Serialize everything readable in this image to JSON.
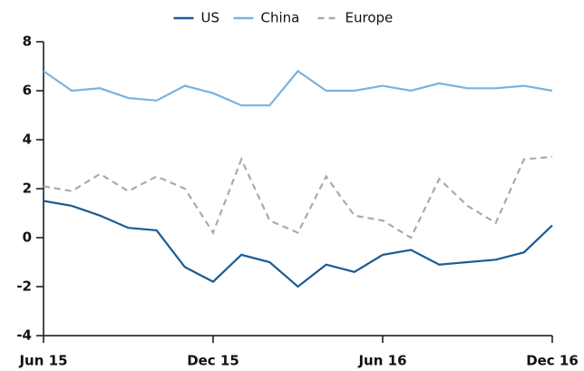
{
  "chart_data": {
    "type": "line",
    "categories": [
      "Jun 15",
      null,
      null,
      null,
      null,
      null,
      "Dec 15",
      null,
      null,
      null,
      null,
      null,
      "Jun 16",
      null,
      null,
      null,
      null,
      null,
      "Dec 16"
    ],
    "series": [
      {
        "name": "US",
        "color": "#1a5c96",
        "dash": false,
        "values": [
          1.5,
          1.3,
          0.9,
          0.4,
          0.3,
          -1.2,
          -1.8,
          -0.7,
          -1.0,
          -2.0,
          -1.1,
          -1.4,
          -0.7,
          -0.5,
          -1.1,
          -1.0,
          -0.9,
          -0.6,
          0.5
        ]
      },
      {
        "name": "China",
        "color": "#7ab3dd",
        "dash": false,
        "values": [
          6.8,
          6.0,
          6.1,
          5.7,
          5.6,
          6.2,
          5.9,
          5.4,
          5.4,
          6.8,
          6.0,
          6.0,
          6.2,
          6.0,
          6.3,
          6.1,
          6.1,
          6.2,
          6.0
        ]
      },
      {
        "name": "Europe",
        "color": "#aaaaaa",
        "dash": true,
        "values": [
          2.1,
          1.9,
          2.6,
          1.9,
          2.5,
          2.0,
          0.2,
          3.2,
          0.7,
          0.2,
          2.5,
          0.9,
          0.7,
          0.0,
          2.4,
          1.3,
          0.6,
          3.2,
          3.3
        ]
      }
    ],
    "ylim": [
      -4,
      8
    ],
    "yticks": [
      -4,
      -2,
      0,
      2,
      4,
      6,
      8
    ],
    "grid": false,
    "legend": "top"
  }
}
